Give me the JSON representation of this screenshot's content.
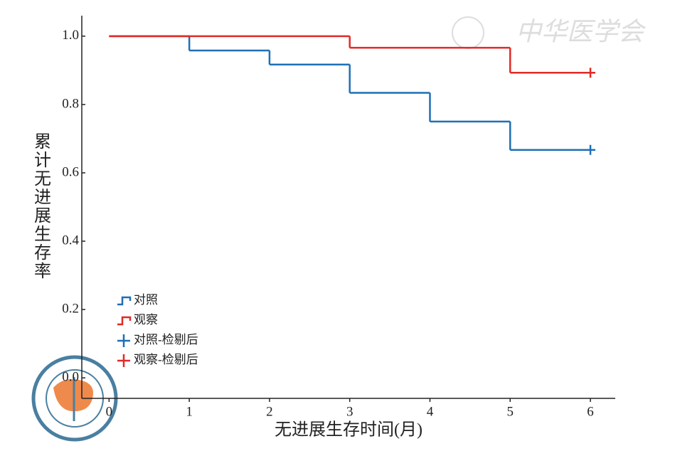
{
  "chart_data": {
    "type": "line",
    "step": "post",
    "xlabel": "无进展生存时间(月)",
    "ylabel": "累计无进展生存率",
    "watermark": "中华医学会",
    "xlim": [
      -0.34,
      6.31
    ],
    "xticks": [
      0,
      1,
      2,
      3,
      4,
      5,
      6
    ],
    "ylim": [
      -0.06,
      1.06
    ],
    "yticks": [
      {
        "value": 0,
        "label": "0.0"
      },
      0.2,
      0.4,
      0.6,
      0.8,
      {
        "value": 1,
        "label": "1.0"
      }
    ],
    "legend": "lower left",
    "series": [
      {
        "name": "对照",
        "color": "#1f6fb5",
        "marker": "step",
        "x": [
          0,
          1,
          2,
          3,
          4,
          5,
          6
        ],
        "values": [
          1.0,
          0.958,
          0.917,
          0.834,
          0.75,
          0.667,
          0.667
        ]
      },
      {
        "name": "观察",
        "color": "#e02b27",
        "marker": "step",
        "x": [
          0,
          3,
          5,
          6
        ],
        "values": [
          1.0,
          0.966,
          0.893,
          0.893
        ]
      },
      {
        "name": "对照-检剔后",
        "color": "#1f6fb5",
        "marker": "plus",
        "x": [
          6
        ],
        "values": [
          0.667
        ]
      },
      {
        "name": "观察-检剔后",
        "color": "#e02b27",
        "marker": "plus",
        "x": [
          6
        ],
        "values": [
          0.893
        ]
      }
    ]
  }
}
